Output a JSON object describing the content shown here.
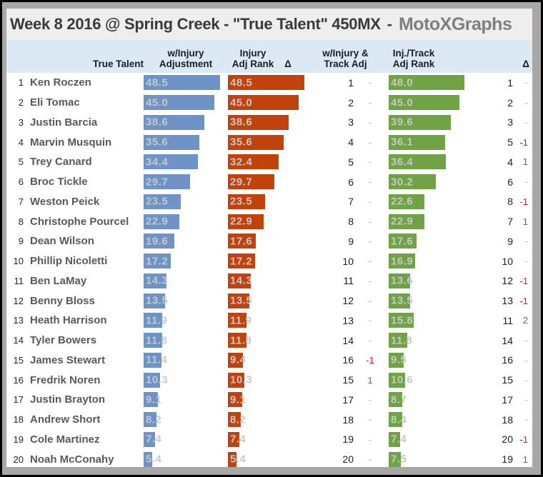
{
  "title": {
    "main": "Week 8 2016 @ Spring Creek - \"True Talent\" 450MX",
    "separator": "-",
    "brand": "MotoXGraphs"
  },
  "chart_data": {
    "type": "bar",
    "orientation": "horizontal",
    "title": "Week 8 2016 @ Spring Creek - \"True Talent\" 450MX - MotoXGraphs",
    "value_range": [
      0,
      50
    ],
    "legend_position": "none",
    "grid": false,
    "columns": {
      "true_talent": {
        "line1": "",
        "line2": "True Talent"
      },
      "injury_adj": {
        "line1": "w/Injury",
        "line2": "Adjustment"
      },
      "injury_rank": {
        "line1": "Injury",
        "line2": "Adj Rank"
      },
      "delta1": {
        "line1": "",
        "line2": "Δ"
      },
      "injury_track_adj": {
        "line1": "w/Injury &",
        "line2": "Track Adj"
      },
      "track_rank": {
        "line1": "Inj./Track",
        "line2": "Adj Rank"
      },
      "delta2": {
        "line1": "",
        "line2": "Δ"
      }
    },
    "colors": {
      "true_talent_bar": "#6d93c7",
      "injury_bar": "#c2420b",
      "track_bar": "#6fa343",
      "delta_negative": "#f20d0d",
      "delta_positive": "#4e7b2f",
      "delta_none": "#b3b3a8",
      "header_band": "#dce9f5"
    },
    "rows": [
      {
        "rank": 1,
        "rider": "Ken Roczen",
        "true_talent": 48.5,
        "injury_adj": 48.5,
        "injury_adj_rank": 1,
        "injury_delta": "-",
        "injury_track_adj": 48.0,
        "track_adj_rank": 1,
        "track_delta": "-"
      },
      {
        "rank": 2,
        "rider": "Eli Tomac",
        "true_talent": 45.0,
        "injury_adj": 45.0,
        "injury_adj_rank": 2,
        "injury_delta": "-",
        "injury_track_adj": 45.0,
        "track_adj_rank": 2,
        "track_delta": "-"
      },
      {
        "rank": 3,
        "rider": "Justin Barcia",
        "true_talent": 38.6,
        "injury_adj": 38.6,
        "injury_adj_rank": 3,
        "injury_delta": "-",
        "injury_track_adj": 39.6,
        "track_adj_rank": 3,
        "track_delta": "-"
      },
      {
        "rank": 4,
        "rider": "Marvin Musquin",
        "true_talent": 35.6,
        "injury_adj": 35.6,
        "injury_adj_rank": 4,
        "injury_delta": "-",
        "injury_track_adj": 36.1,
        "track_adj_rank": 5,
        "track_delta": "-1"
      },
      {
        "rank": 5,
        "rider": "Trey Canard",
        "true_talent": 34.4,
        "injury_adj": 32.4,
        "injury_adj_rank": 5,
        "injury_delta": "-",
        "injury_track_adj": 36.4,
        "track_adj_rank": 4,
        "track_delta": "1"
      },
      {
        "rank": 6,
        "rider": "Broc Tickle",
        "true_talent": 29.7,
        "injury_adj": 29.7,
        "injury_adj_rank": 6,
        "injury_delta": "-",
        "injury_track_adj": 30.2,
        "track_adj_rank": 6,
        "track_delta": "-"
      },
      {
        "rank": 7,
        "rider": "Weston Peick",
        "true_talent": 23.5,
        "injury_adj": 23.5,
        "injury_adj_rank": 7,
        "injury_delta": "-",
        "injury_track_adj": 22.6,
        "track_adj_rank": 8,
        "track_delta": "-1"
      },
      {
        "rank": 8,
        "rider": "Christophe Pourcel",
        "true_talent": 22.9,
        "injury_adj": 22.9,
        "injury_adj_rank": 8,
        "injury_delta": "-",
        "injury_track_adj": 22.9,
        "track_adj_rank": 7,
        "track_delta": "1"
      },
      {
        "rank": 9,
        "rider": "Dean Wilson",
        "true_talent": 19.6,
        "injury_adj": 17.6,
        "injury_adj_rank": 9,
        "injury_delta": "-",
        "injury_track_adj": 17.6,
        "track_adj_rank": 9,
        "track_delta": "-"
      },
      {
        "rank": 10,
        "rider": "Phillip Nicoletti",
        "true_talent": 17.2,
        "injury_adj": 17.2,
        "injury_adj_rank": 10,
        "injury_delta": "-",
        "injury_track_adj": 16.9,
        "track_adj_rank": 10,
        "track_delta": "-"
      },
      {
        "rank": 11,
        "rider": "Ben LaMay",
        "true_talent": 14.3,
        "injury_adj": 14.3,
        "injury_adj_rank": 11,
        "injury_delta": "-",
        "injury_track_adj": 13.6,
        "track_adj_rank": 12,
        "track_delta": "-1"
      },
      {
        "rank": 12,
        "rider": "Benny Bloss",
        "true_talent": 13.5,
        "injury_adj": 13.5,
        "injury_adj_rank": 12,
        "injury_delta": "-",
        "injury_track_adj": 13.5,
        "track_adj_rank": 13,
        "track_delta": "-1"
      },
      {
        "rank": 13,
        "rider": "Heath Harrison",
        "true_talent": 11.9,
        "injury_adj": 11.9,
        "injury_adj_rank": 13,
        "injury_delta": "-",
        "injury_track_adj": 15.8,
        "track_adj_rank": 11,
        "track_delta": "2"
      },
      {
        "rank": 14,
        "rider": "Tyler Bowers",
        "true_talent": 11.8,
        "injury_adj": 11.8,
        "injury_adj_rank": 14,
        "injury_delta": "-",
        "injury_track_adj": 11.8,
        "track_adj_rank": 14,
        "track_delta": "-"
      },
      {
        "rank": 15,
        "rider": "James Stewart",
        "true_talent": 11.4,
        "injury_adj": 9.4,
        "injury_adj_rank": 16,
        "injury_delta": "-1",
        "injury_track_adj": 9.5,
        "track_adj_rank": 16,
        "track_delta": "-"
      },
      {
        "rank": 16,
        "rider": "Fredrik Noren",
        "true_talent": 10.3,
        "injury_adj": 10.3,
        "injury_adj_rank": 15,
        "injury_delta": "1",
        "injury_track_adj": 10.6,
        "track_adj_rank": 15,
        "track_delta": "-"
      },
      {
        "rank": 17,
        "rider": "Justin Brayton",
        "true_talent": 9.1,
        "injury_adj": 9.1,
        "injury_adj_rank": 17,
        "injury_delta": "-",
        "injury_track_adj": 8.7,
        "track_adj_rank": 17,
        "track_delta": "-"
      },
      {
        "rank": 18,
        "rider": "Andrew Short",
        "true_talent": 8.2,
        "injury_adj": 8.2,
        "injury_adj_rank": 18,
        "injury_delta": "-",
        "injury_track_adj": 8.4,
        "track_adj_rank": 18,
        "track_delta": "-"
      },
      {
        "rank": 19,
        "rider": "Cole Martinez",
        "true_talent": 7.4,
        "injury_adj": 7.4,
        "injury_adj_rank": 19,
        "injury_delta": "-",
        "injury_track_adj": 7.4,
        "track_adj_rank": 20,
        "track_delta": "-1"
      },
      {
        "rank": 20,
        "rider": "Noah McConahy",
        "true_talent": 5.4,
        "injury_adj": 5.4,
        "injury_adj_rank": 20,
        "injury_delta": "-",
        "injury_track_adj": 7.5,
        "track_adj_rank": 19,
        "track_delta": "1"
      }
    ]
  }
}
